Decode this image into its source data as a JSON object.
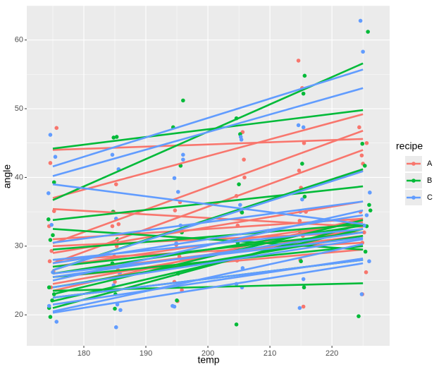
{
  "chart_data": {
    "type": "scatter",
    "x_label": "temp",
    "y_label": "angle",
    "legend_title": "recipe",
    "xlim": [
      170.8,
      229.3
    ],
    "ylim": [
      15.5,
      65.0
    ],
    "xticks": [
      180,
      190,
      200,
      210,
      220
    ],
    "yticks": [
      20,
      30,
      40,
      50,
      60
    ],
    "grid": true,
    "legend_position": "right",
    "fit_x": [
      175,
      225
    ],
    "series": [
      {
        "name": "A",
        "color": "#F8766D",
        "x": [
          175.6,
          174.6,
          175.2,
          174.4,
          174.8,
          174.5,
          175.1,
          174.7,
          185.2,
          184.8,
          185.6,
          184.6,
          185.3,
          184.9,
          185.5,
          185.0,
          195.5,
          194.7,
          195.2,
          194.9,
          195.4,
          194.6,
          195.8,
          195.1,
          205.6,
          205.8,
          205.9,
          204.6,
          205.4,
          204.8,
          205.2,
          204.7,
          214.6,
          215.2,
          215.5,
          214.7,
          215.0,
          215.8,
          214.8,
          215.3,
          214.9,
          215.4,
          224.4,
          224.8,
          225.0,
          225.6,
          224.6,
          225.2,
          224.9,
          225.5,
          224.9
        ],
        "y": [
          47.2,
          42.1,
          35.1,
          32.9,
          29.3,
          27.8,
          26.3,
          24.0,
          39.0,
          35.0,
          33.2,
          32.9,
          30.0,
          28.5,
          26.5,
          24.8,
          36.4,
          35.2,
          31.0,
          30.2,
          28.5,
          24.8,
          23.6,
          22.0,
          46.6,
          42.6,
          40.0,
          37.3,
          35.0,
          33.0,
          31.0,
          27.9,
          57.0,
          53.0,
          45.0,
          41.0,
          38.5,
          35.0,
          33.7,
          31.5,
          28.0,
          21.2,
          47.3,
          43.2,
          42.0,
          45.0,
          35.0,
          32.0,
          30.5,
          26.2,
          23.0
        ],
        "fits": [
          [
            44.0,
            45.6
          ],
          [
            37.0,
            49.2
          ],
          [
            30.4,
            46.8
          ],
          [
            35.4,
            32.8
          ],
          [
            27.5,
            44.0
          ],
          [
            26.5,
            41.0
          ],
          [
            29.0,
            36.5
          ],
          [
            31.0,
            34.0
          ],
          [
            27.0,
            33.5
          ],
          [
            24.5,
            32.5
          ],
          [
            26.0,
            31.5
          ],
          [
            28.0,
            30.5
          ],
          [
            23.5,
            34.0
          ],
          [
            30.0,
            32.0
          ],
          [
            25.5,
            29.5
          ]
        ]
      },
      {
        "name": "B",
        "color": "#00BA38",
        "x": [
          175.2,
          174.3,
          174.6,
          175.0,
          174.4,
          175.2,
          174.9,
          174.6,
          174.4,
          184.8,
          185.3,
          184.7,
          185.4,
          184.6,
          185.1,
          185.0,
          194.4,
          196.0,
          195.6,
          195.8,
          195.2,
          195.0,
          204.6,
          205.2,
          205.0,
          205.5,
          204.8,
          204.6,
          215.6,
          215.4,
          215.2,
          215.6,
          214.8,
          215.0,
          215.5,
          225.8,
          224.9,
          225.3,
          226.0,
          226.2,
          225.6,
          225.4,
          224.3
        ],
        "y": [
          39.3,
          33.9,
          30.9,
          31.6,
          24.0,
          23.0,
          22.1,
          19.7,
          21.0,
          45.8,
          45.9,
          35.0,
          31.0,
          27.5,
          23.0,
          20.9,
          47.3,
          51.2,
          41.7,
          32.0,
          26.0,
          22.1,
          48.6,
          46.3,
          39.0,
          34.9,
          30.5,
          18.6,
          54.8,
          52.2,
          42.0,
          37.2,
          32.2,
          27.8,
          24.0,
          61.2,
          44.9,
          41.7,
          36.0,
          35.2,
          32.9,
          29.2,
          19.8
        ],
        "fits": [
          [
            44.2,
            49.8
          ],
          [
            36.7,
            56.6
          ],
          [
            33.8,
            38.7
          ],
          [
            32.5,
            29.5
          ],
          [
            29.5,
            33.2
          ],
          [
            26.5,
            41.2
          ],
          [
            23.0,
            33.8
          ],
          [
            21.0,
            33.2
          ],
          [
            22.0,
            32.5
          ],
          [
            23.5,
            24.6
          ],
          [
            26.0,
            33.0
          ],
          [
            27.0,
            32.0
          ],
          [
            25.5,
            30.0
          ],
          [
            24.0,
            31.5
          ],
          [
            22.5,
            28.0
          ]
        ]
      },
      {
        "name": "C",
        "color": "#619CFF",
        "x": [
          174.6,
          175.4,
          174.3,
          174.8,
          175.8,
          175.0,
          174.4,
          175.6,
          184.6,
          185.6,
          185.2,
          185.8,
          184.8,
          185.4,
          185.2,
          185.9,
          194.6,
          196.0,
          196.0,
          195.2,
          195.6,
          194.9,
          195.8,
          194.3,
          194.6,
          205.3,
          205.4,
          205.2,
          204.8,
          205.6,
          205.5,
          204.6,
          214.6,
          215.4,
          215.2,
          214.9,
          215.6,
          215.4,
          214.8,
          224.6,
          225.0,
          226.1,
          225.6,
          225.2,
          226.0,
          224.8
        ],
        "y": [
          46.2,
          43.0,
          37.7,
          33.1,
          27.8,
          26.2,
          21.3,
          19.0,
          43.3,
          41.2,
          34.0,
          26.0,
          24.3,
          21.5,
          18.2,
          20.7,
          39.9,
          43.3,
          42.6,
          37.9,
          33.0,
          30.4,
          28.0,
          21.3,
          21.2,
          45.9,
          45.5,
          36.0,
          29.5,
          26.8,
          24.0,
          24.5,
          47.6,
          47.3,
          36.8,
          35.0,
          30.3,
          25.2,
          21.0,
          62.8,
          58.3,
          37.8,
          34.5,
          33.0,
          27.8,
          23.0
        ],
        "fits": [
          [
            41.6,
            55.7
          ],
          [
            40.2,
            53.0
          ],
          [
            39.0,
            33.2
          ],
          [
            30.5,
            36.5
          ],
          [
            26.5,
            40.9
          ],
          [
            25.0,
            35.2
          ],
          [
            27.5,
            34.5
          ],
          [
            20.5,
            30.3
          ],
          [
            21.5,
            28.2
          ],
          [
            22.5,
            28.0
          ],
          [
            26.0,
            31.2
          ],
          [
            28.0,
            32.5
          ],
          [
            24.0,
            31.0
          ],
          [
            25.5,
            32.0
          ],
          [
            20.3,
            27.5
          ]
        ]
      }
    ]
  }
}
